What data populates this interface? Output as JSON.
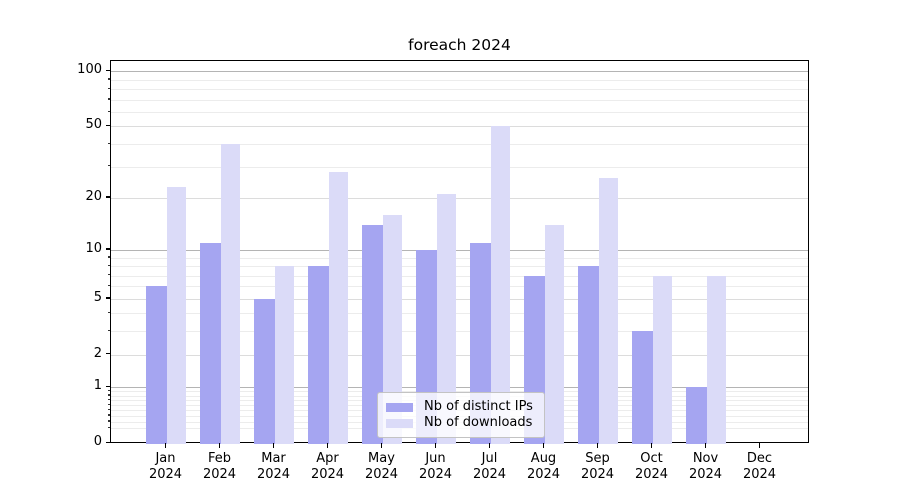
{
  "title": "foreach 2024",
  "chart_data": {
    "type": "bar",
    "title": "foreach 2024",
    "categories": [
      "Jan 2024",
      "Feb 2024",
      "Mar 2024",
      "Apr 2024",
      "May 2024",
      "Jun 2024",
      "Jul 2024",
      "Aug 2024",
      "Sep 2024",
      "Oct 2024",
      "Nov 2024",
      "Dec 2024"
    ],
    "series": [
      {
        "name": "Nb of distinct IPs",
        "color": "#a5a5f1",
        "values": [
          6,
          11,
          5,
          8,
          14,
          10,
          11,
          7,
          8,
          3,
          1,
          0
        ]
      },
      {
        "name": "Nb of downloads",
        "color": "#dbdbf8",
        "values": [
          23,
          40,
          8,
          28,
          16,
          21,
          50,
          14,
          26,
          7,
          7,
          0
        ]
      }
    ],
    "xlabel": "",
    "ylabel": "",
    "yscale": "log1p",
    "ylim": [
      0,
      115
    ],
    "yticks": [
      0,
      1,
      2,
      5,
      10,
      20,
      50,
      100
    ],
    "ytick_minor": [
      0.2,
      0.3,
      0.4,
      0.5,
      0.6,
      0.7,
      0.8,
      0.9,
      3,
      4,
      6,
      7,
      8,
      9,
      30,
      40,
      60,
      70,
      80,
      90
    ],
    "grid": true,
    "legend_position": "lower center"
  }
}
